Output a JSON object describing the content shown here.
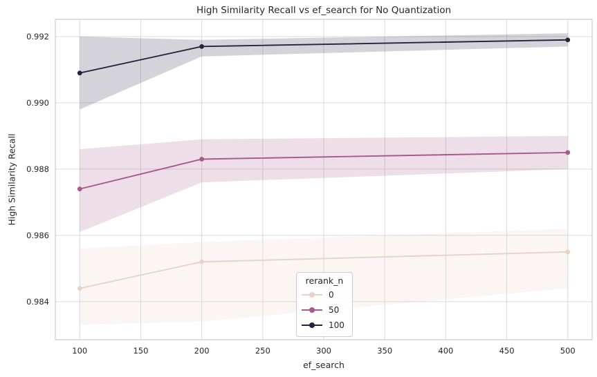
{
  "chart_data": {
    "type": "line",
    "title": "High Similarity Recall vs ef_search for No Quantization",
    "xlabel": "ef_search",
    "ylabel": "High Similarity Recall",
    "x": [
      100,
      200,
      500
    ],
    "series": [
      {
        "name": "0",
        "color": "#e9d1c8",
        "values": [
          0.9844,
          0.9852,
          0.9855
        ],
        "band_low": [
          0.9833,
          0.9834,
          0.9844
        ],
        "band_high": [
          0.9856,
          0.9858,
          0.9862
        ]
      },
      {
        "name": "50",
        "color": "#a6598b",
        "values": [
          0.9874,
          0.9883,
          0.9885
        ],
        "band_low": [
          0.9861,
          0.9876,
          0.988
        ],
        "band_high": [
          0.9886,
          0.9889,
          0.989
        ]
      },
      {
        "name": "100",
        "color": "#262140",
        "values": [
          0.9909,
          0.9917,
          0.9919
        ],
        "band_low": [
          0.9898,
          0.9914,
          0.9917
        ],
        "band_high": [
          0.992,
          0.9919,
          0.9921
        ]
      }
    ],
    "xticks": [
      100,
      150,
      200,
      250,
      300,
      350,
      400,
      450,
      500
    ],
    "xtick_labels": [
      "100",
      "150",
      "200",
      "250",
      "300",
      "350",
      "400",
      "450",
      "500"
    ],
    "yticks": [
      0.984,
      0.986,
      0.988,
      0.99,
      0.992
    ],
    "ytick_labels": [
      "0.984",
      "0.986",
      "0.988",
      "0.990",
      "0.992"
    ],
    "xlim": [
      80,
      520
    ],
    "ylim": [
      0.98285,
      0.99252
    ],
    "band_alpha": 0.2,
    "grid": true,
    "legend": {
      "title": "rerank_n",
      "entries": [
        "0",
        "50",
        "100"
      ],
      "position": "lower center"
    }
  },
  "colors": {
    "background": "#ffffff",
    "grid": "#d9d9d9",
    "spine": "#cccccc",
    "text": "#262626",
    "legend_border": "#cccccc"
  }
}
